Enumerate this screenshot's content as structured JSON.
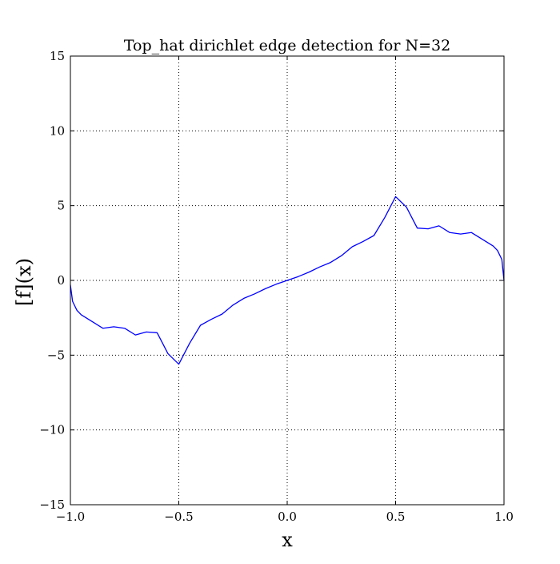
{
  "chart_data": {
    "type": "line",
    "title": "Top_hat dirichlet edge detection for N=32",
    "x_label": "x",
    "y_label": "[f](x)",
    "x": [
      -1.0,
      -0.99,
      -0.97,
      -0.95,
      -0.9,
      -0.85,
      -0.8,
      -0.75,
      -0.7,
      -0.65,
      -0.6,
      -0.55,
      -0.5,
      -0.45,
      -0.4,
      -0.35,
      -0.3,
      -0.25,
      -0.2,
      -0.15,
      -0.1,
      -0.05,
      0,
      0.05,
      0.1,
      0.15,
      0.2,
      0.25,
      0.3,
      0.35,
      0.4,
      0.45,
      0.5,
      0.55,
      0.6,
      0.65,
      0.7,
      0.75,
      0.8,
      0.85,
      0.9,
      0.95,
      0.97,
      0.99,
      1.0
    ],
    "series": [
      {
        "name": "f",
        "color": "#0000ff",
        "values": [
          -0.3,
          -1.4,
          -2.0,
          -2.3,
          -2.75,
          -3.2,
          -3.1,
          -3.2,
          -3.65,
          -3.45,
          -3.5,
          -4.9,
          -5.6,
          -4.2,
          -3.0,
          -2.6,
          -2.25,
          -1.65,
          -1.2,
          -0.9,
          -0.55,
          -0.25,
          0,
          0.25,
          0.55,
          0.9,
          1.2,
          1.65,
          2.25,
          2.6,
          3.0,
          4.2,
          5.6,
          4.9,
          3.5,
          3.45,
          3.65,
          3.2,
          3.1,
          3.2,
          2.75,
          2.3,
          2.0,
          1.4,
          0
        ]
      }
    ],
    "xlim": [
      -1.0,
      1.0
    ],
    "xticks": [
      {
        "value": -1.0,
        "label": "−1.0"
      },
      {
        "value": -0.5,
        "label": "−0.5"
      },
      {
        "value": 0,
        "label": "0.0"
      },
      0.5,
      {
        "value": 1.0,
        "label": "1.0"
      }
    ],
    "ylim": [
      -15,
      15
    ],
    "yticks": [
      {
        "value": -15,
        "label": "−15"
      },
      {
        "value": -10,
        "label": "−10"
      },
      {
        "value": -5,
        "label": "−5"
      },
      0,
      5,
      10,
      15
    ],
    "grid": true
  }
}
